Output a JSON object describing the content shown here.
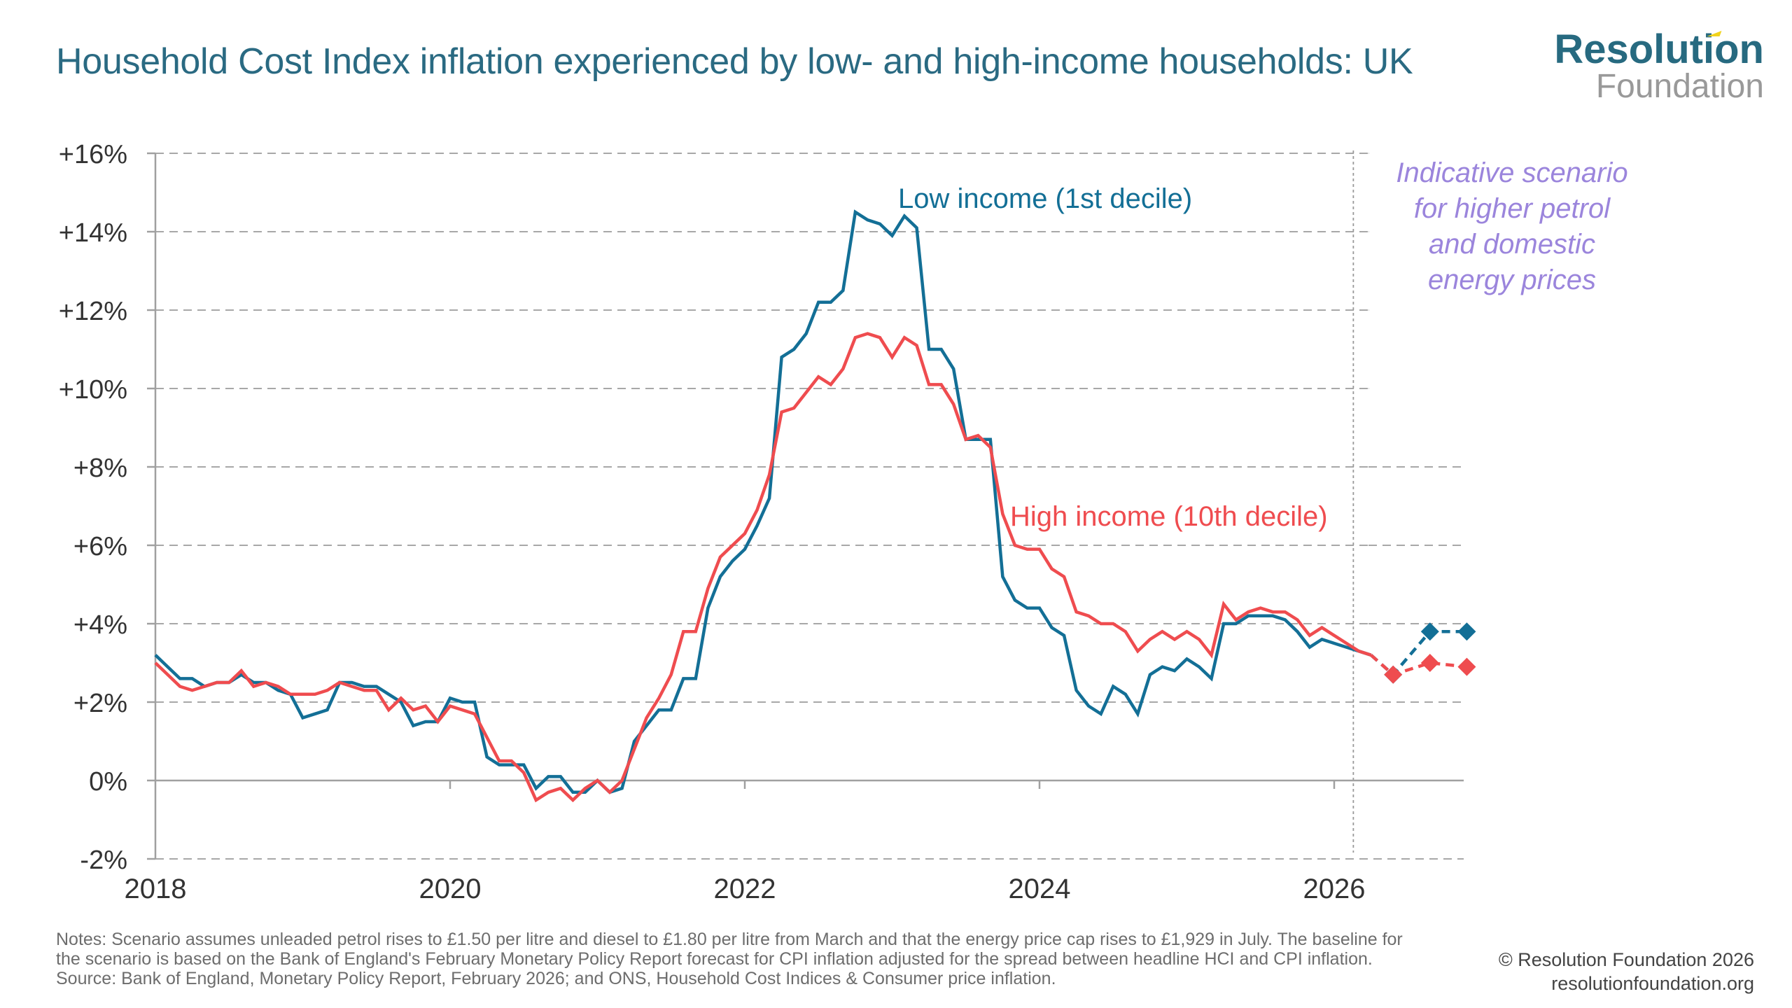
{
  "header": {
    "title": "Household Cost Index inflation experienced by low- and high-income households: UK",
    "logo_line1": "Resolution",
    "logo_line2": "Foundation"
  },
  "colors": {
    "low_income": "#136f96",
    "high_income": "#ef4c4f",
    "scenario_text": "#9b85dc",
    "grid": "#a8a8a8",
    "title": "#2a6a82"
  },
  "chart_data": {
    "type": "line",
    "title": "Household Cost Index inflation experienced by low- and high-income households: UK",
    "xlabel": "",
    "ylabel": "",
    "ylim": [
      -2,
      16
    ],
    "yticks": [
      -2,
      0,
      2,
      4,
      6,
      8,
      10,
      12,
      14,
      16
    ],
    "ytick_labels": [
      "-2%",
      "0%",
      "+2%",
      "+4%",
      "+6%",
      "+8%",
      "+10%",
      "+12%",
      "+14%",
      "+16%"
    ],
    "xlim": [
      2018.0,
      2026.95
    ],
    "xticks": [
      2018,
      2020,
      2022,
      2024,
      2026
    ],
    "xtick_labels": [
      "2018",
      "2020",
      "2022",
      "2024",
      "2026"
    ],
    "grid": true,
    "legend": "inline-labels",
    "x_start": 2018.0,
    "x_step_months": 1,
    "series": [
      {
        "name": "Low income (1st decile)",
        "label": "Low income (1st decile)",
        "values": [
          3.2,
          2.9,
          2.6,
          2.6,
          2.4,
          2.5,
          2.5,
          2.7,
          2.5,
          2.5,
          2.3,
          2.2,
          1.6,
          1.7,
          1.8,
          2.5,
          2.5,
          2.4,
          2.4,
          2.2,
          2.0,
          1.4,
          1.5,
          1.5,
          2.1,
          2.0,
          2.0,
          0.6,
          0.4,
          0.4,
          0.4,
          -0.2,
          0.1,
          0.1,
          -0.3,
          -0.3,
          0.0,
          -0.3,
          -0.2,
          1.0,
          1.4,
          1.8,
          1.8,
          2.6,
          2.6,
          4.4,
          5.2,
          5.6,
          5.9,
          6.5,
          7.2,
          10.8,
          11.0,
          11.4,
          12.2,
          12.2,
          12.5,
          14.5,
          14.3,
          14.2,
          13.9,
          14.4,
          14.1,
          11.0,
          11.0,
          10.5,
          8.7,
          8.7,
          8.7,
          5.2,
          4.6,
          4.4,
          4.4,
          3.9,
          3.7,
          2.3,
          1.9,
          1.7,
          2.4,
          2.2,
          1.7,
          2.7,
          2.9,
          2.8,
          3.1,
          2.9,
          2.6,
          4.0,
          4.0,
          4.2,
          4.2,
          4.2,
          4.1,
          3.8,
          3.4,
          3.6,
          3.5,
          3.4,
          3.3,
          3.2
        ],
        "scenario": [
          {
            "x": 2026.4,
            "y": 2.7
          },
          {
            "x": 2026.65,
            "y": 3.8
          },
          {
            "x": 2026.9,
            "y": 3.8
          }
        ]
      },
      {
        "name": "High income (10th decile)",
        "label": "High income (10th decile)",
        "values": [
          3.0,
          2.7,
          2.4,
          2.3,
          2.4,
          2.5,
          2.5,
          2.8,
          2.4,
          2.5,
          2.4,
          2.2,
          2.2,
          2.2,
          2.3,
          2.5,
          2.4,
          2.3,
          2.3,
          1.8,
          2.1,
          1.8,
          1.9,
          1.5,
          1.9,
          1.8,
          1.7,
          1.1,
          0.5,
          0.5,
          0.2,
          -0.5,
          -0.3,
          -0.2,
          -0.5,
          -0.2,
          0.0,
          -0.3,
          0.0,
          0.8,
          1.6,
          2.1,
          2.7,
          3.8,
          3.8,
          4.9,
          5.7,
          6.0,
          6.3,
          6.9,
          7.8,
          9.4,
          9.5,
          9.9,
          10.3,
          10.1,
          10.5,
          11.3,
          11.4,
          11.3,
          10.8,
          11.3,
          11.1,
          10.1,
          10.1,
          9.6,
          8.7,
          8.8,
          8.5,
          6.8,
          6.0,
          5.9,
          5.9,
          5.4,
          5.2,
          4.3,
          4.2,
          4.0,
          4.0,
          3.8,
          3.3,
          3.6,
          3.8,
          3.6,
          3.8,
          3.6,
          3.2,
          4.5,
          4.1,
          4.3,
          4.4,
          4.3,
          4.3,
          4.1,
          3.7,
          3.9,
          3.7,
          3.5,
          3.3,
          3.2
        ],
        "scenario": [
          {
            "x": 2026.4,
            "y": 2.7
          },
          {
            "x": 2026.65,
            "y": 3.0
          },
          {
            "x": 2026.9,
            "y": 2.9
          }
        ]
      }
    ],
    "forecast_divider_x": 2026.13,
    "annotations": [
      "Low income (1st decile)",
      "High income (10th decile)",
      "Indicative scenario for higher petrol and domestic energy prices"
    ]
  },
  "scenario_note": {
    "lines": [
      "Indicative scenario",
      "for higher petrol",
      "and domestic",
      "energy prices"
    ]
  },
  "footer": {
    "notes": "Notes: Scenario assumes unleaded petrol rises to £1.50 per litre and diesel to £1.80 per litre from March and that the energy price cap rises to £1,929 in July. The baseline for the scenario is based on the Bank of England's February Monetary Policy Report forecast for CPI inflation adjusted for the spread between headline HCI and CPI inflation.",
    "source": "Source: Bank of England, Monetary Policy Report, February 2026; and ONS, Household Cost Indices & Consumer price inflation.",
    "copyright": "© Resolution Foundation 2026",
    "website": "resolutionfoundation.org"
  }
}
